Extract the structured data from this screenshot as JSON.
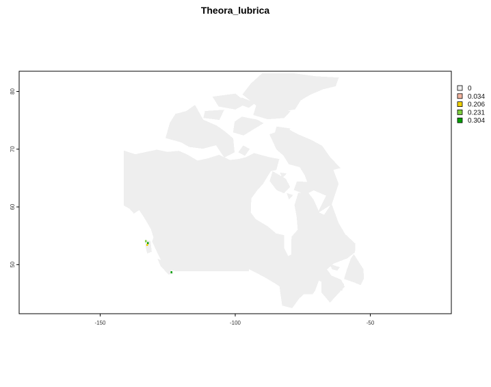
{
  "title": "Theora_lubrica",
  "chart_data": {
    "type": "raster-map",
    "title": "Theora_lubrica",
    "xlim": [
      -180,
      -20
    ],
    "ylim": [
      41.5,
      83.5
    ],
    "x_ticks": [
      -150,
      -100,
      -50
    ],
    "y_ticks": [
      50,
      60,
      70,
      80
    ],
    "x_tick_labels": [
      "-150",
      "-100",
      "-50"
    ],
    "y_tick_labels": [
      "50",
      "60",
      "70",
      "80"
    ],
    "grid": false,
    "legend_placement": "right-top",
    "background_fill": "#eeeeee",
    "legend": [
      {
        "label": "0",
        "color": "#eeeeee"
      },
      {
        "label": "0.034",
        "color": "#f2b5a0"
      },
      {
        "label": "0.206",
        "color": "#f0d000"
      },
      {
        "label": "0.231",
        "color": "#7fcf40"
      },
      {
        "label": "0.304",
        "color": "#00a000"
      }
    ],
    "region_outline": [
      [
        -122.2,
        49.0
      ],
      [
        -110,
        49.0
      ],
      [
        -95.2,
        49.0
      ],
      [
        -95.2,
        49.4
      ],
      [
        -89.3,
        48.0
      ],
      [
        -85,
        46.8
      ],
      [
        -83.4,
        46.3
      ],
      [
        -82.4,
        43.0
      ],
      [
        -79,
        42.6
      ],
      [
        -76.5,
        44.2
      ],
      [
        -74.7,
        45.0
      ],
      [
        -71.5,
        45.0
      ],
      [
        -70.7,
        45.5
      ],
      [
        -69.2,
        47.4
      ],
      [
        -67.8,
        47.1
      ],
      [
        -67.8,
        45.2
      ],
      [
        -64.9,
        43.6
      ],
      [
        -61.0,
        45.6
      ],
      [
        -59.8,
        46.2
      ],
      [
        -61.0,
        47.3
      ],
      [
        -64.5,
        48.0
      ],
      [
        -66.4,
        49.2
      ],
      [
        -63.6,
        50.3
      ],
      [
        -58.6,
        51.2
      ],
      [
        -55.9,
        52.2
      ],
      [
        -55.8,
        53.6
      ],
      [
        -59.5,
        55.2
      ],
      [
        -62.0,
        57.2
      ],
      [
        -64.4,
        60.3
      ],
      [
        -67.0,
        58.5
      ],
      [
        -69.0,
        58.9
      ],
      [
        -71.2,
        61.2
      ],
      [
        -73.0,
        62.3
      ],
      [
        -76.5,
        62.3
      ],
      [
        -77.8,
        60.3
      ],
      [
        -77.0,
        58.2
      ],
      [
        -76.6,
        56.0
      ],
      [
        -78.9,
        54.8
      ],
      [
        -79.0,
        51.7
      ],
      [
        -80.5,
        51.3
      ],
      [
        -82.2,
        52.9
      ],
      [
        -82.1,
        55.0
      ],
      [
        -85.0,
        55.3
      ],
      [
        -88.0,
        56.5
      ],
      [
        -92.6,
        57.8
      ],
      [
        -94.5,
        59.0
      ],
      [
        -94.3,
        61.5
      ],
      [
        -92.0,
        63.0
      ],
      [
        -90.0,
        64.0
      ],
      [
        -87.0,
        66.3
      ],
      [
        -85.0,
        66.5
      ],
      [
        -84.0,
        68.2
      ],
      [
        -87.5,
        68.5
      ],
      [
        -93.0,
        69.2
      ],
      [
        -96.0,
        68.5
      ],
      [
        -98.5,
        68.2
      ],
      [
        -102.0,
        68.0
      ],
      [
        -106.0,
        68.9
      ],
      [
        -110.0,
        68.3
      ],
      [
        -114.0,
        67.9
      ],
      [
        -118.0,
        69.0
      ],
      [
        -121.0,
        69.6
      ],
      [
        -125.0,
        69.4
      ],
      [
        -129.0,
        69.8
      ],
      [
        -134.0,
        69.3
      ],
      [
        -137.0,
        69.0
      ],
      [
        -141.0,
        69.6
      ],
      [
        -141.0,
        60.3
      ],
      [
        -139.0,
        59.8
      ],
      [
        -137.5,
        59.0
      ],
      [
        -135.5,
        59.6
      ],
      [
        -133.5,
        58.2
      ],
      [
        -131.0,
        56.2
      ],
      [
        -130.0,
        54.7
      ],
      [
        -130.5,
        54.0
      ],
      [
        -129.5,
        53.0
      ],
      [
        -128.0,
        51.5
      ],
      [
        -127.0,
        50.6
      ],
      [
        -124.5,
        49.4
      ],
      [
        -123.2,
        49.1
      ]
    ],
    "islands": [
      [
        [
          -128.3,
          50.8
        ],
        [
          -125.5,
          50.3
        ],
        [
          -123.3,
          48.5
        ],
        [
          -124.6,
          48.4
        ],
        [
          -127.4,
          49.8
        ]
      ],
      [
        [
          -133.2,
          54.1
        ],
        [
          -131.6,
          54.0
        ],
        [
          -131.2,
          52.3
        ],
        [
          -132.4,
          52.1
        ],
        [
          -133.0,
          53.2
        ]
      ],
      [
        [
          -56.1,
          51.6
        ],
        [
          -52.8,
          49.2
        ],
        [
          -52.6,
          47.6
        ],
        [
          -53.7,
          46.6
        ],
        [
          -55.8,
          47.0
        ],
        [
          -59.4,
          47.6
        ],
        [
          -58.5,
          49.0
        ],
        [
          -57.0,
          51.0
        ]
      ],
      [
        [
          -64.3,
          46.5
        ],
        [
          -62.0,
          46.4
        ],
        [
          -62.1,
          46.0
        ],
        [
          -63.8,
          46.1
        ]
      ],
      [
        [
          -61.5,
          47.0
        ],
        [
          -60.0,
          46.6
        ],
        [
          -60.6,
          45.6
        ],
        [
          -61.4,
          45.8
        ]
      ],
      [
        [
          -64.5,
          49.9
        ],
        [
          -61.7,
          49.5
        ],
        [
          -62.3,
          49.1
        ],
        [
          -64.0,
          49.3
        ]
      ],
      [
        [
          -69.0,
          59.2
        ],
        [
          -64.5,
          60.5
        ],
        [
          -62.0,
          64.0
        ],
        [
          -64.0,
          66.5
        ],
        [
          -61.5,
          66.8
        ],
        [
          -65.0,
          68.5
        ],
        [
          -68.0,
          70.5
        ],
        [
          -72.0,
          71.5
        ],
        [
          -77.0,
          72.5
        ],
        [
          -81.0,
          73.5
        ],
        [
          -87.0,
          72.5
        ],
        [
          -84.5,
          70.0
        ],
        [
          -82.0,
          69.0
        ],
        [
          -80.0,
          67.5
        ],
        [
          -76.0,
          67.0
        ],
        [
          -74.0,
          65.5
        ],
        [
          -73.0,
          64.2
        ],
        [
          -77.0,
          64.3
        ],
        [
          -78.0,
          63.0
        ],
        [
          -74.0,
          62.3
        ],
        [
          -71.0,
          63.0
        ],
        [
          -66.0,
          62.0
        ]
      ],
      [
        [
          -86.0,
          66.0
        ],
        [
          -81.5,
          64.8
        ],
        [
          -80.0,
          63.5
        ],
        [
          -82.0,
          62.5
        ],
        [
          -84.5,
          63.0
        ],
        [
          -87.0,
          64.5
        ]
      ],
      [
        [
          -115.0,
          77.5
        ],
        [
          -118.0,
          76.5
        ],
        [
          -122.0,
          76.0
        ],
        [
          -124.0,
          74.5
        ],
        [
          -125.5,
          72.0
        ],
        [
          -120.0,
          71.3
        ],
        [
          -117.0,
          70.5
        ],
        [
          -112.0,
          70.2
        ],
        [
          -107.0,
          70.8
        ],
        [
          -104.0,
          68.7
        ],
        [
          -100.5,
          69.5
        ],
        [
          -101.0,
          71.8
        ],
        [
          -104.0,
          73.0
        ],
        [
          -107.0,
          74.0
        ],
        [
          -112.0,
          75.0
        ]
      ],
      [
        [
          -97.5,
          75.5
        ],
        [
          -92.0,
          75.0
        ],
        [
          -90.0,
          74.5
        ],
        [
          -93.5,
          73.5
        ],
        [
          -97.0,
          72.5
        ],
        [
          -100.5,
          73.0
        ],
        [
          -100.0,
          74.7
        ]
      ],
      [
        [
          -92.0,
          77.5
        ],
        [
          -87.0,
          77.0
        ],
        [
          -80.0,
          76.5
        ],
        [
          -82.0,
          75.5
        ],
        [
          -88.0,
          75.3
        ],
        [
          -93.0,
          76.0
        ]
      ],
      [
        [
          -90.0,
          83.0
        ],
        [
          -78.0,
          83.0
        ],
        [
          -70.0,
          82.5
        ],
        [
          -62.0,
          82.3
        ],
        [
          -63.0,
          81.0
        ],
        [
          -67.5,
          80.5
        ],
        [
          -72.5,
          79.5
        ],
        [
          -76.0,
          78.5
        ],
        [
          -78.0,
          77.0
        ],
        [
          -84.0,
          76.5
        ],
        [
          -90.0,
          76.8
        ],
        [
          -93.0,
          78.0
        ],
        [
          -97.0,
          79.5
        ],
        [
          -94.0,
          81.3
        ]
      ],
      [
        [
          -108.0,
          79.0
        ],
        [
          -100.0,
          79.5
        ],
        [
          -96.0,
          78.0
        ],
        [
          -100.0,
          77.0
        ],
        [
          -106.0,
          77.5
        ]
      ],
      [
        [
          -97.5,
          78.8
        ],
        [
          -93.0,
          78.0
        ],
        [
          -95.0,
          77.3
        ],
        [
          -98.0,
          77.8
        ]
      ],
      [
        [
          -111.0,
          76.5
        ],
        [
          -104.5,
          76.7
        ],
        [
          -106.0,
          75.2
        ],
        [
          -111.5,
          75.5
        ]
      ],
      [
        [
          -84.5,
          73.8
        ],
        [
          -80.0,
          73.5
        ],
        [
          -81.0,
          72.5
        ],
        [
          -85.0,
          73.0
        ]
      ],
      [
        [
          -97.0,
          70.5
        ],
        [
          -95.0,
          70.0
        ],
        [
          -96.5,
          69.0
        ],
        [
          -98.5,
          69.5
        ]
      ],
      [
        [
          -80.5,
          62.2
        ],
        [
          -79.0,
          62.0
        ],
        [
          -80.0,
          61.5
        ]
      ],
      [
        [
          -83.0,
          65.8
        ],
        [
          -81.5,
          65.7
        ],
        [
          -82.5,
          65.2
        ]
      ]
    ],
    "cells": [
      {
        "lon": -133.1,
        "lat": 54.1,
        "value": 0.231
      },
      {
        "lon": -132.3,
        "lat": 53.7,
        "value": 0.304
      },
      {
        "lon": -132.6,
        "lat": 53.4,
        "value": 0.206
      },
      {
        "lon": -123.6,
        "lat": 48.7,
        "value": 0.304
      }
    ]
  }
}
